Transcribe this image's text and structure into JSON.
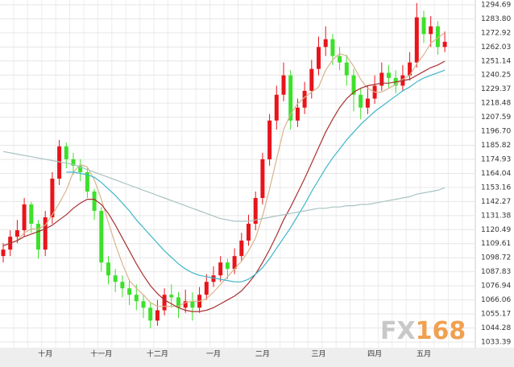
{
  "chart_data": {
    "type": "candlestick",
    "categories": [
      null,
      null,
      null,
      null,
      null,
      null,
      "十月",
      null,
      null,
      null,
      null,
      null,
      null,
      null,
      "十一月",
      null,
      null,
      null,
      null,
      null,
      null,
      null,
      "十二月",
      null,
      null,
      null,
      null,
      null,
      null,
      null,
      "一月",
      null,
      null,
      null,
      null,
      null,
      null,
      "二月",
      null,
      null,
      null,
      null,
      null,
      null,
      null,
      "三月",
      null,
      null,
      null,
      null,
      null,
      null,
      null,
      "四月",
      null,
      null,
      null,
      null,
      null,
      null,
      "五月",
      null,
      null,
      null
    ],
    "open": [
      1100,
      1105,
      1115,
      1120,
      1140,
      1125,
      1105,
      1130,
      1160,
      1185,
      1175,
      1170,
      1165,
      1150,
      1135,
      1095,
      1085,
      1080,
      1075,
      1070,
      1065,
      1060,
      1050,
      1058,
      1070,
      1068,
      1060,
      1065,
      1060,
      1070,
      1080,
      1085,
      1095,
      1090,
      1100,
      1112,
      1125,
      1145,
      1175,
      1205,
      1225,
      1240,
      1205,
      1215,
      1228,
      1245,
      1262,
      1268,
      1255,
      1250,
      1240,
      1225,
      1215,
      1222,
      1232,
      1242,
      1238,
      1232,
      1240,
      1250,
      1285,
      1272,
      1278,
      1262
    ],
    "high": [
      1110,
      1120,
      1128,
      1145,
      1142,
      1128,
      1135,
      1165,
      1190,
      1188,
      1180,
      1175,
      1168,
      1152,
      1138,
      1100,
      1090,
      1085,
      1082,
      1078,
      1070,
      1064,
      1066,
      1075,
      1078,
      1072,
      1074,
      1072,
      1076,
      1086,
      1092,
      1100,
      1098,
      1106,
      1118,
      1132,
      1150,
      1180,
      1210,
      1232,
      1250,
      1244,
      1222,
      1235,
      1252,
      1270,
      1278,
      1272,
      1262,
      1256,
      1245,
      1230,
      1232,
      1240,
      1250,
      1248,
      1244,
      1248,
      1258,
      1296,
      1290,
      1286,
      1282,
      1274
    ],
    "low": [
      1095,
      1100,
      1110,
      1115,
      1118,
      1098,
      1100,
      1125,
      1155,
      1168,
      1163,
      1158,
      1145,
      1128,
      1088,
      1078,
      1072,
      1068,
      1062,
      1058,
      1052,
      1044,
      1046,
      1054,
      1060,
      1052,
      1056,
      1050,
      1056,
      1066,
      1076,
      1080,
      1082,
      1086,
      1096,
      1108,
      1120,
      1140,
      1170,
      1198,
      1220,
      1198,
      1200,
      1210,
      1222,
      1240,
      1255,
      1248,
      1244,
      1232,
      1212,
      1206,
      1210,
      1218,
      1228,
      1230,
      1226,
      1228,
      1236,
      1246,
      1265,
      1262,
      1256,
      1258
    ],
    "close": [
      1105,
      1115,
      1120,
      1140,
      1125,
      1105,
      1130,
      1160,
      1185,
      1175,
      1170,
      1165,
      1150,
      1135,
      1095,
      1085,
      1080,
      1075,
      1070,
      1065,
      1060,
      1050,
      1058,
      1070,
      1068,
      1060,
      1065,
      1060,
      1070,
      1080,
      1085,
      1095,
      1090,
      1100,
      1112,
      1125,
      1145,
      1175,
      1205,
      1225,
      1240,
      1205,
      1215,
      1228,
      1245,
      1262,
      1268,
      1255,
      1250,
      1240,
      1225,
      1215,
      1222,
      1232,
      1242,
      1238,
      1232,
      1240,
      1250,
      1285,
      1272,
      1278,
      1262,
      1266
    ],
    "up_color": "#e8141b",
    "down_color": "#3de02a",
    "lines": [
      {
        "color": "#d9b48c",
        "values": [
          1108,
          1110,
          1112,
          1118,
          1121,
          1121,
          1124,
          1132,
          1141,
          1151,
          1165,
          1171,
          1169,
          1159,
          1144,
          1126,
          1109,
          1094,
          1081,
          1075,
          1070,
          1064,
          1061,
          1061,
          1061,
          1061,
          1064,
          1065,
          1065,
          1067,
          1072,
          1078,
          1084,
          1090,
          1096,
          1104,
          1114,
          1131,
          1152,
          1175,
          1198,
          1210,
          1218,
          1223,
          1227,
          1231,
          1244,
          1252,
          1257,
          1255,
          1247,
          1237,
          1230,
          1227,
          1227,
          1230,
          1233,
          1237,
          1240,
          1249,
          1256,
          1265,
          1269,
          1273
        ]
      },
      {
        "color": "#a83232",
        "values": [
          1108,
          1110,
          1112,
          1115,
          1117,
          1119,
          1121,
          1124,
          1128,
          1132,
          1137,
          1141,
          1144,
          1144,
          1140,
          1133,
          1124,
          1114,
          1104,
          1094,
          1085,
          1077,
          1071,
          1066,
          1063,
          1060,
          1058,
          1057,
          1057,
          1058,
          1060,
          1063,
          1066,
          1069,
          1073,
          1079,
          1086,
          1095,
          1105,
          1116,
          1128,
          1138,
          1149,
          1160,
          1172,
          1184,
          1196,
          1206,
          1215,
          1222,
          1227,
          1230,
          1232,
          1233,
          1234,
          1234,
          1235,
          1236,
          1237,
          1240,
          1243,
          1246,
          1248,
          1251
        ]
      },
      {
        "color": "#3db6c9",
        "values": [
          null,
          null,
          null,
          null,
          null,
          null,
          null,
          null,
          null,
          1165,
          1165,
          1164,
          1163,
          1161,
          1157,
          1152,
          1147,
          1141,
          1135,
          1128,
          1122,
          1116,
          1110,
          1104,
          1099,
          1094,
          1090,
          1087,
          1085,
          1084,
          1083,
          1082,
          1081,
          1080,
          1080,
          1082,
          1086,
          1091,
          1098,
          1106,
          1114,
          1122,
          1131,
          1140,
          1150,
          1159,
          1168,
          1176,
          1183,
          1190,
          1196,
          1202,
          1207,
          1212,
          1216,
          1220,
          1224,
          1228,
          1231,
          1235,
          1238,
          1240,
          1242,
          1244
        ]
      },
      {
        "color": "#a9c3c3",
        "values": [
          1181,
          1180,
          1179,
          1178,
          1177,
          1176,
          1175,
          1174,
          1173,
          1172,
          1171,
          1169,
          1167,
          1165,
          1163,
          1161,
          1159,
          1157,
          1155,
          1153,
          1151,
          1149,
          1147,
          1145,
          1143,
          1141,
          1139,
          1137,
          1135,
          1133,
          1131,
          1129,
          1128,
          1127,
          1127,
          1127,
          1128,
          1129,
          1130,
          1131,
          1132,
          1133,
          1134,
          1135,
          1136,
          1137,
          1137,
          1138,
          1138,
          1139,
          1139,
          1140,
          1140,
          1141,
          1142,
          1143,
          1144,
          1145,
          1146,
          1148,
          1149,
          1150,
          1151,
          1153
        ]
      }
    ],
    "ylim": [
      1029,
      1298.4
    ],
    "yticks": [
      1033.39,
      1044.28,
      1055.17,
      1066.06,
      1076.94,
      1087.83,
      1098.72,
      1109.61,
      1120.49,
      1131.38,
      1142.27,
      1153.16,
      1164.04,
      1174.93,
      1185.82,
      {
        "value": 1196.7,
        "label": "1196.70"
      },
      1207.59,
      1218.48,
      1229.37,
      1240.25,
      1251.14,
      1262.03,
      1272.92,
      {
        "value": 1283.8,
        "label": "1283.80"
      },
      1294.69
    ],
    "grid": true,
    "watermark": [
      "FX",
      "168"
    ]
  }
}
